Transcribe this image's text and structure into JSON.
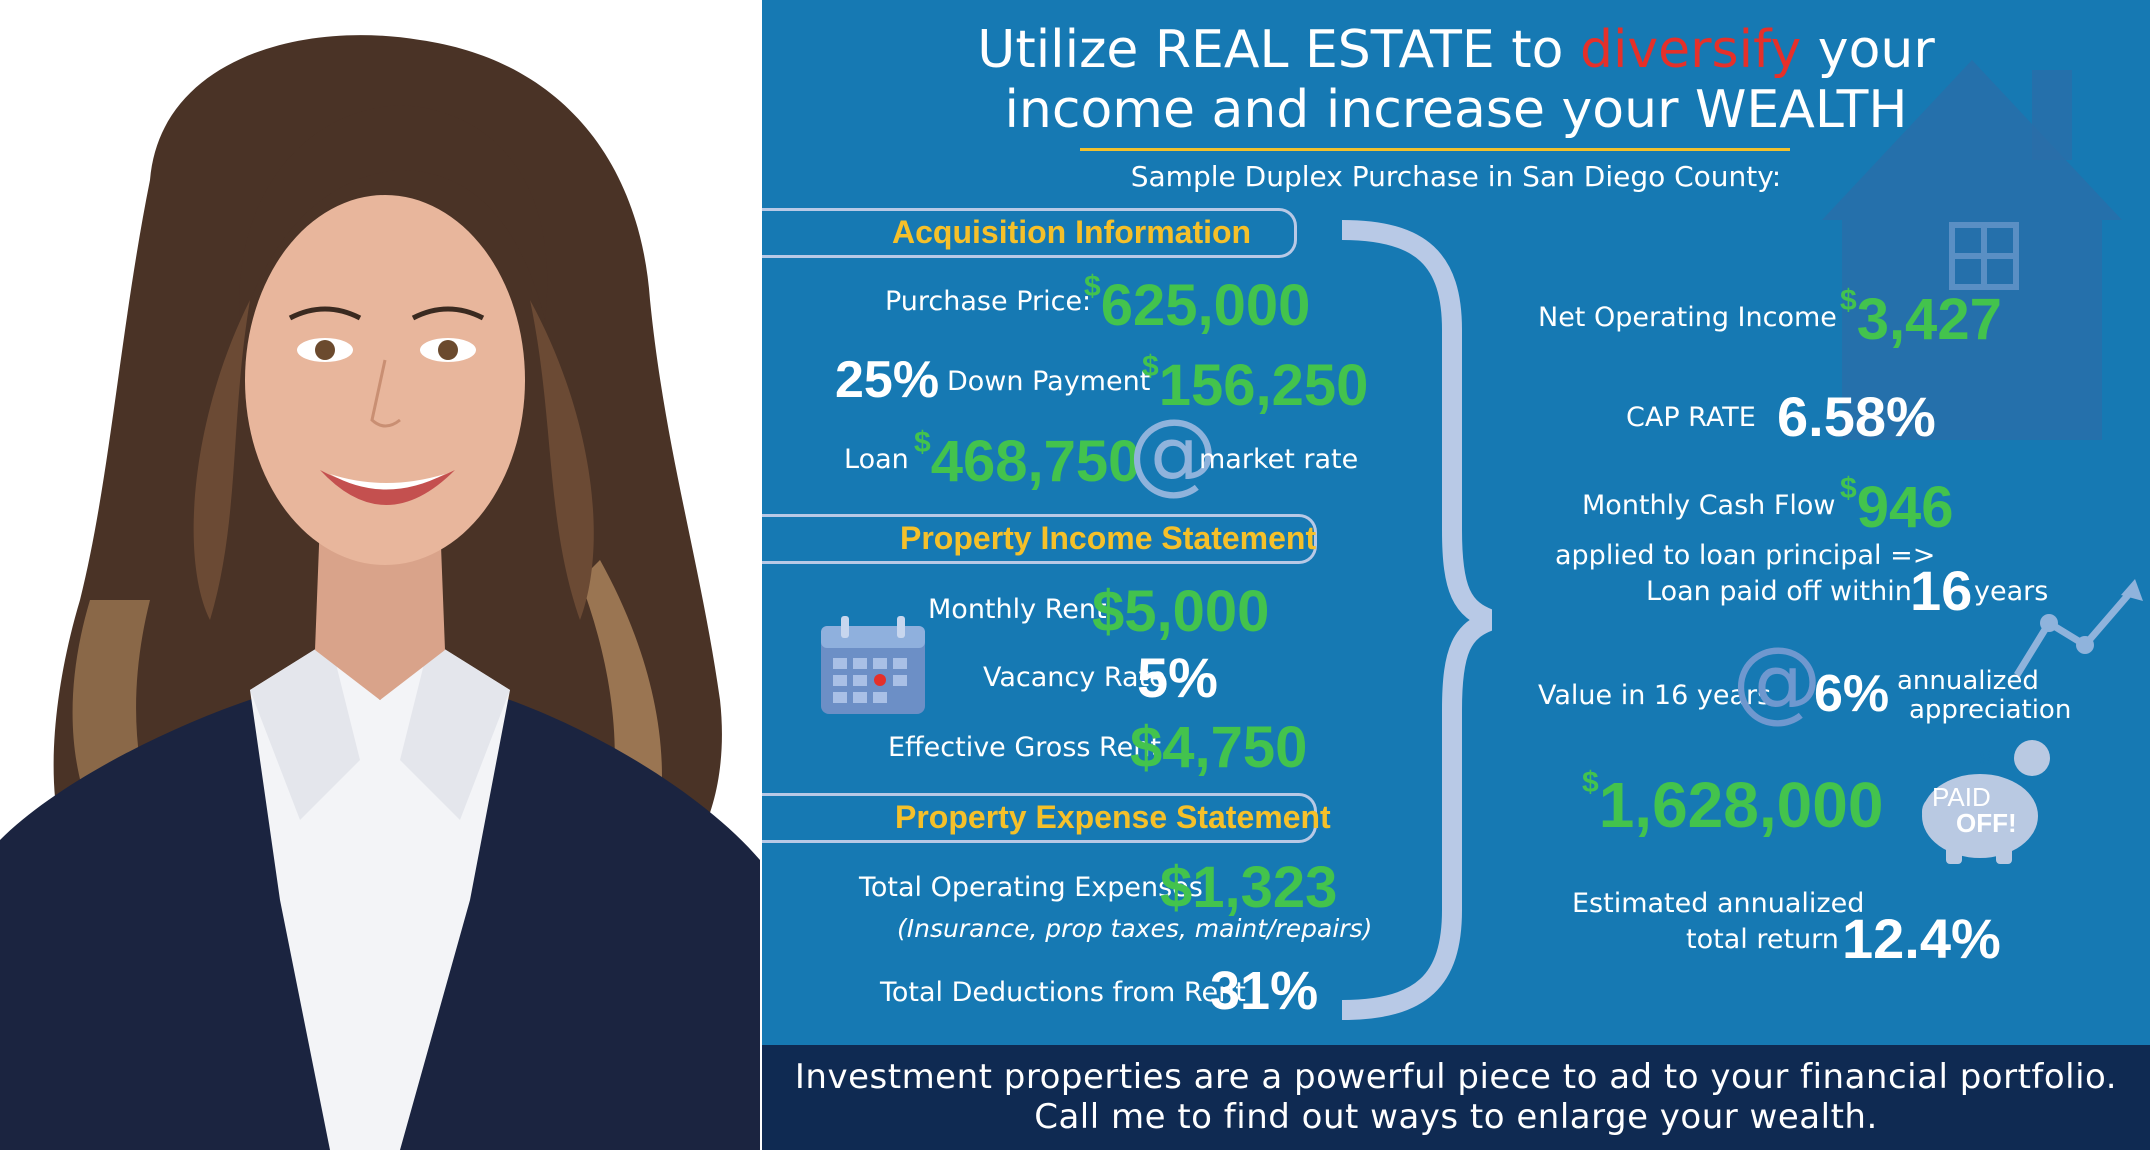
{
  "headline": {
    "line1_pre": "Utilize REAL ESTATE to ",
    "line1_accent": "diversify",
    "line1_post": " your",
    "line2": "income and increase your WEALTH",
    "subtitle": "Sample Duplex Purchase in San Diego County:"
  },
  "acquisition": {
    "heading": "Acquisition Information",
    "purchase_price_label": "Purchase Price:",
    "purchase_price_value": "625,000",
    "down_pct": "25%",
    "down_label": "Down Payment",
    "down_value": "156,250",
    "loan_label": "Loan",
    "loan_value": "468,750",
    "at_symbol": "@",
    "market_rate_label": "market rate"
  },
  "income": {
    "heading": "Property Income Statement",
    "monthly_rent_label": "Monthly Rent",
    "monthly_rent_value": "$5,000",
    "vacancy_label": "Vacancy Rate",
    "vacancy_value": "5%",
    "egr_label": "Effective Gross Rent",
    "egr_value": "$4,750"
  },
  "expense": {
    "heading": "Property Expense Statement",
    "total_opex_label": "Total Operating Expenses",
    "total_opex_value": "$1,323",
    "opex_note": "(Insurance, prop taxes, maint/repairs)",
    "deductions_label": "Total Deductions from Rent",
    "deductions_value": "31%"
  },
  "results": {
    "noi_label": "Net Operating Income",
    "noi_value": "3,427",
    "cap_label": "CAP RATE",
    "cap_value": "6.58%",
    "cashflow_label": "Monthly Cash Flow",
    "cashflow_value": "946",
    "applied_label": "applied to loan principal =>",
    "payoff_label": "Loan paid off within",
    "payoff_years": "16",
    "payoff_unit": "years",
    "value_label": "Value in 16 years",
    "at_symbol": "@",
    "appreciation_rate": "6%",
    "appreciation_line1": "annualized",
    "appreciation_line2": "appreciation",
    "future_value": "1,628,000",
    "paid_off_line1": "PAID",
    "paid_off_line2": "OFF!",
    "coin_symbol": "$",
    "return_line1": "Estimated annualized",
    "return_line2": "total return",
    "return_value": "12.4%"
  },
  "dollar_sign": "$",
  "footer": {
    "line1": "Investment properties are a powerful piece to ad to your financial portfolio.",
    "line2": "Call me to find out ways to enlarge your wealth."
  },
  "colors": {
    "panel_blue": "#1679b3",
    "footer_navy": "#0f2a52",
    "value_green": "#43c34d",
    "heading_gold": "#f5c02a",
    "accent_red": "#e5302a"
  },
  "icons": [
    "house-icon",
    "calendar-icon",
    "growth-chart-icon",
    "piggy-bank-icon",
    "brace-divider"
  ]
}
